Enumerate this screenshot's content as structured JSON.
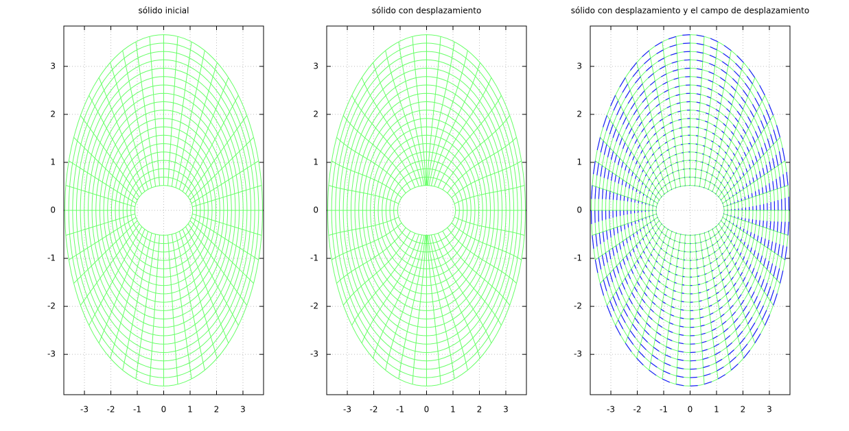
{
  "chart_data": [
    {
      "type": "mesh",
      "title": "sólido inicial",
      "color": "#66ff66",
      "displaced": false,
      "arrows": false,
      "xlim": [
        -3.78,
        3.78
      ],
      "ylim": [
        -3.84,
        3.84
      ],
      "xticks": [
        -3,
        -2,
        -1,
        0,
        1,
        2,
        3
      ],
      "yticks": [
        -3,
        -2,
        -1,
        0,
        1,
        2,
        3
      ],
      "grid": true
    },
    {
      "type": "mesh",
      "title": "sólido con desplazamiento",
      "color": "#66ff66",
      "displaced": true,
      "arrows": false,
      "xlim": [
        -3.78,
        3.78
      ],
      "ylim": [
        -3.84,
        3.84
      ],
      "xticks": [
        -3,
        -2,
        -1,
        0,
        1,
        2,
        3
      ],
      "yticks": [
        -3,
        -2,
        -1,
        0,
        1,
        2,
        3
      ],
      "grid": true
    },
    {
      "type": "mesh",
      "title": "sólido con desplazamiento y el campo de desplazamiento",
      "color": "#66ff66",
      "displaced": true,
      "arrows": true,
      "arrow_color": "#1a1aff",
      "xlim": [
        -3.78,
        3.78
      ],
      "ylim": [
        -3.84,
        3.84
      ],
      "xticks": [
        -3,
        -2,
        -1,
        0,
        1,
        2,
        3
      ],
      "yticks": [
        -3,
        -2,
        -1,
        0,
        1,
        2,
        3
      ],
      "grid": true
    }
  ]
}
